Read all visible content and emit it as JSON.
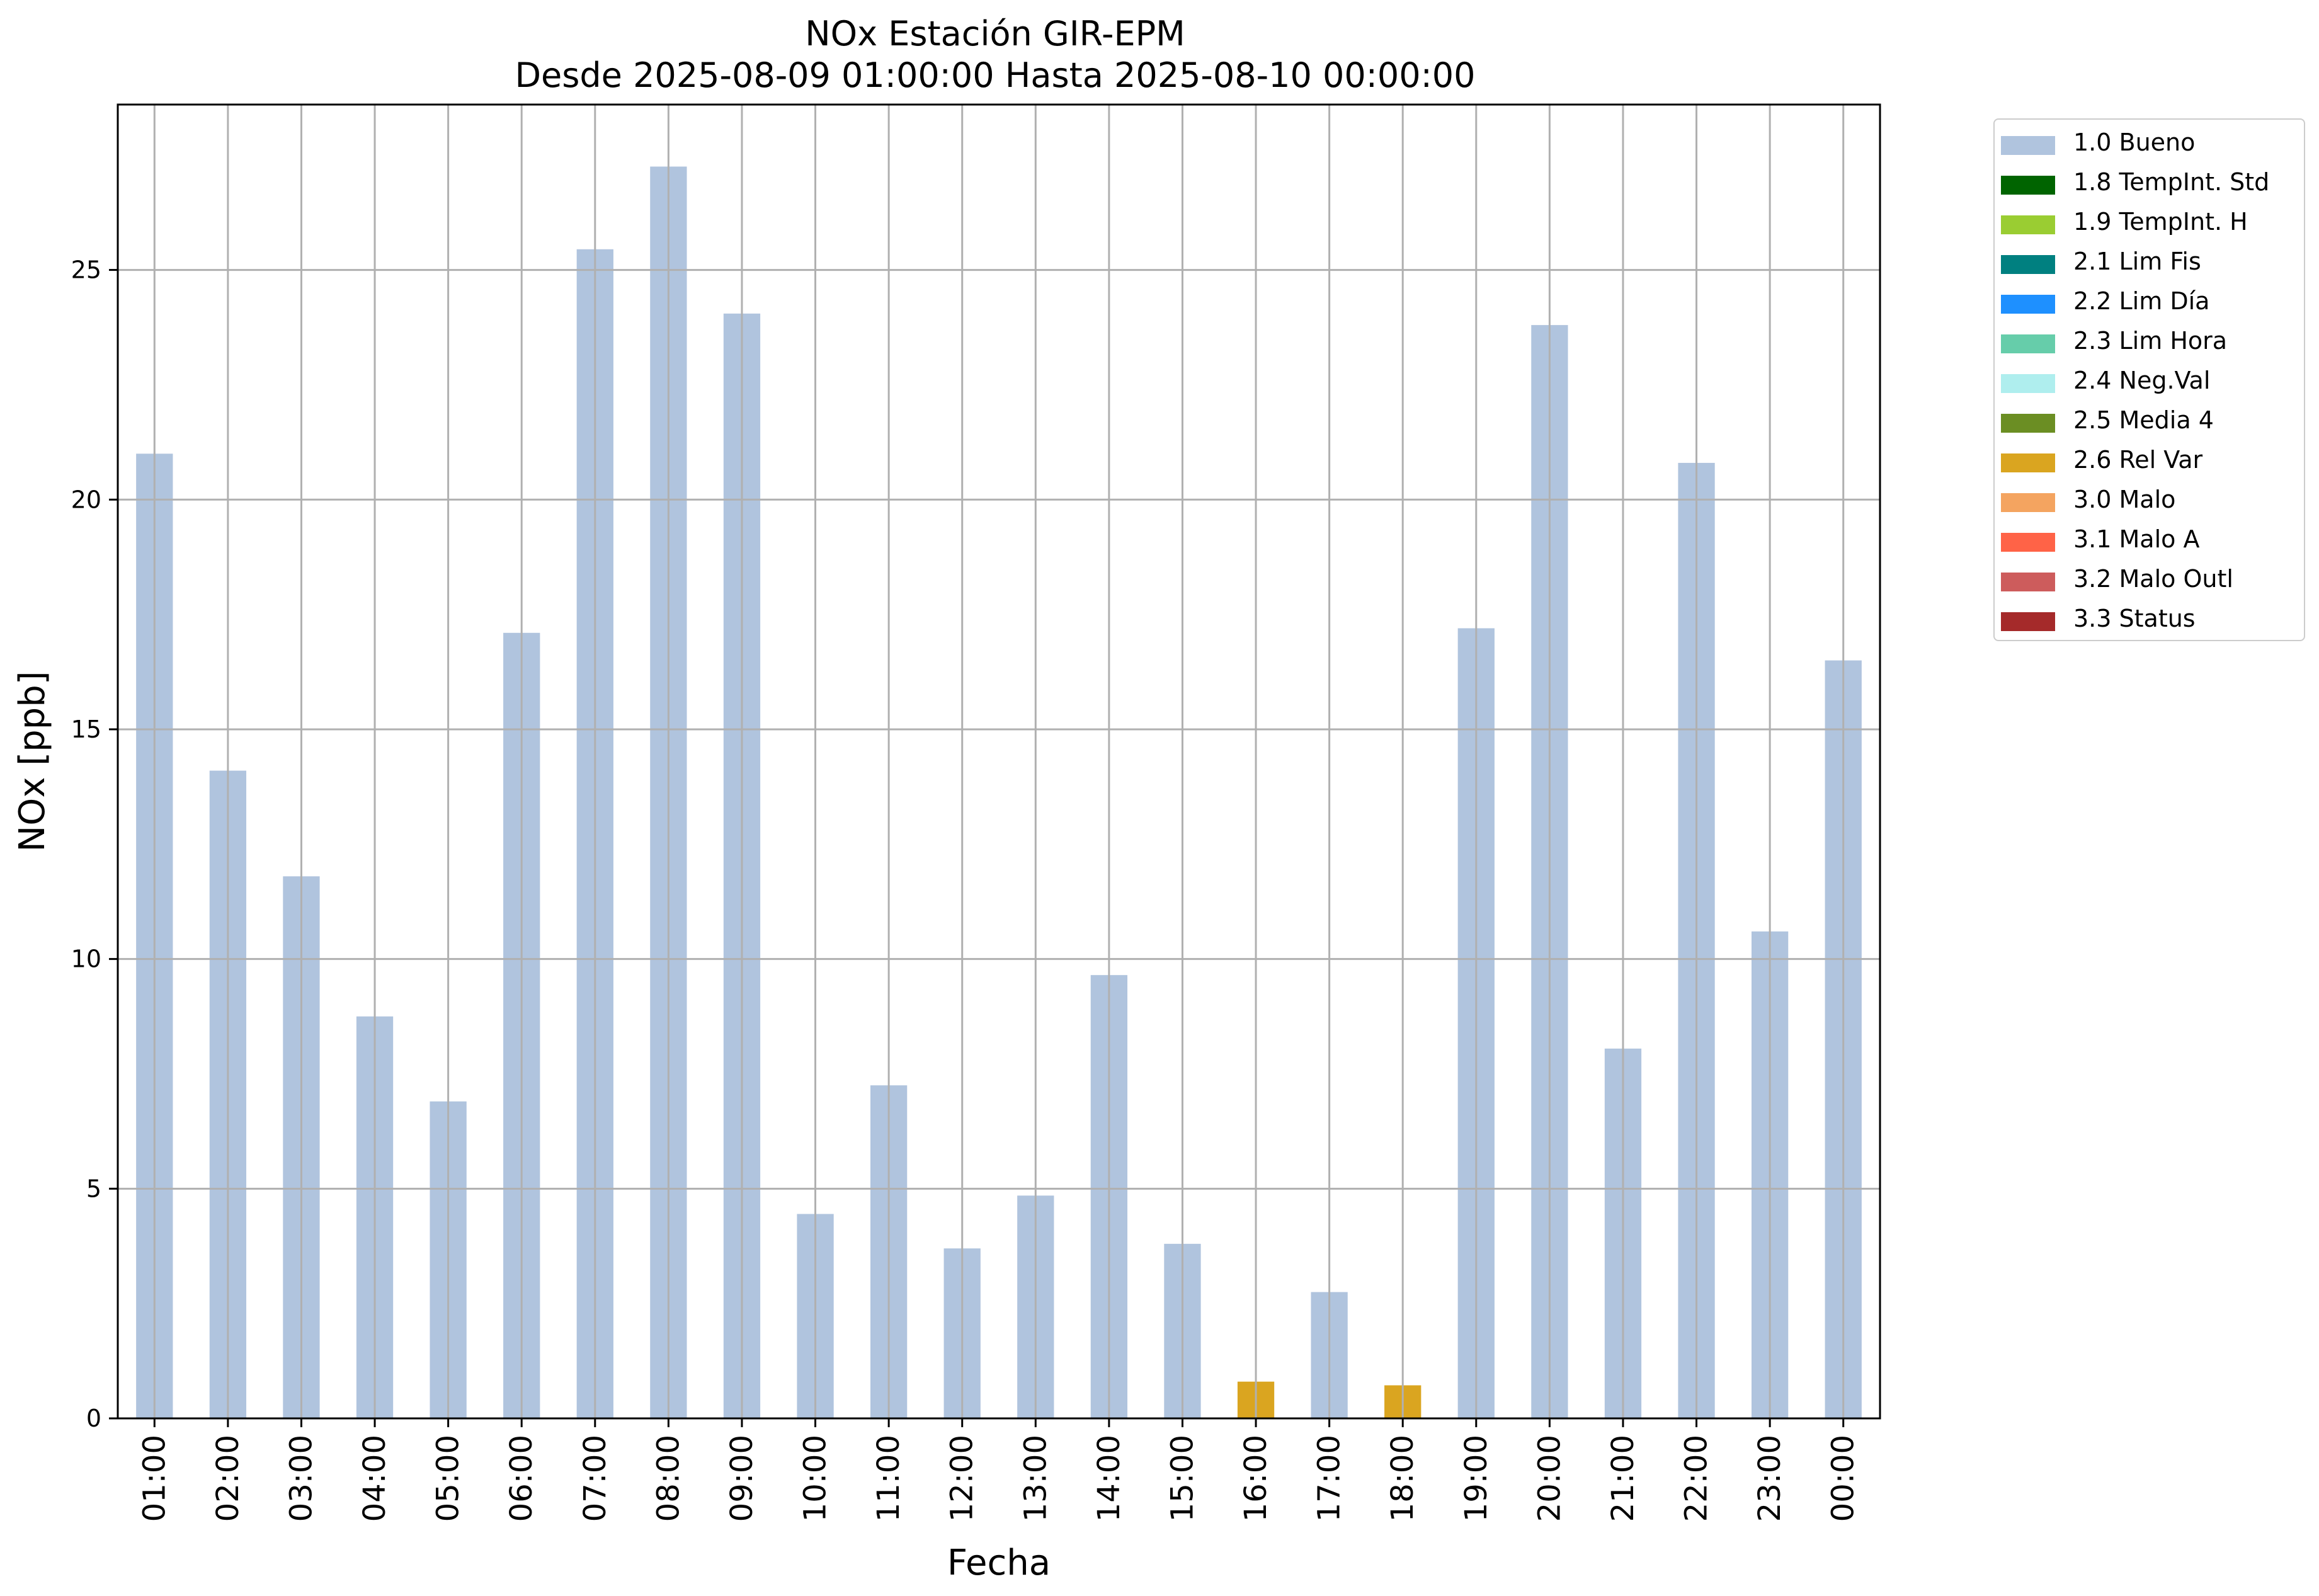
{
  "chart_data": {
    "type": "bar",
    "title": "NOx Estación GIR-EPM",
    "subtitle": "Desde 2025-08-09 01:00:00 Hasta 2025-08-10 00:00:00",
    "xlabel": "Fecha",
    "ylabel": "NOx [ppb]",
    "ylim": [
      0,
      28.6
    ],
    "yticks": [
      0,
      5,
      10,
      15,
      20,
      25
    ],
    "grid": true,
    "legend_position": "outside-right",
    "categories": [
      "01:00",
      "02:00",
      "03:00",
      "04:00",
      "05:00",
      "06:00",
      "07:00",
      "08:00",
      "09:00",
      "10:00",
      "11:00",
      "12:00",
      "13:00",
      "14:00",
      "15:00",
      "16:00",
      "17:00",
      "18:00",
      "19:00",
      "20:00",
      "21:00",
      "22:00",
      "23:00",
      "00:00"
    ],
    "values": [
      21.0,
      14.1,
      11.8,
      8.75,
      6.9,
      17.1,
      25.45,
      27.25,
      24.05,
      4.45,
      7.25,
      3.7,
      4.85,
      9.65,
      3.8,
      0.8,
      2.75,
      0.72,
      17.2,
      23.8,
      8.05,
      20.8,
      10.6,
      16.5
    ],
    "flags": [
      "1.0 Bueno",
      "1.0 Bueno",
      "1.0 Bueno",
      "1.0 Bueno",
      "1.0 Bueno",
      "1.0 Bueno",
      "1.0 Bueno",
      "1.0 Bueno",
      "1.0 Bueno",
      "1.0 Bueno",
      "1.0 Bueno",
      "1.0 Bueno",
      "1.0 Bueno",
      "1.0 Bueno",
      "1.0 Bueno",
      "2.6 Rel Var",
      "1.0 Bueno",
      "2.6 Rel Var",
      "1.0 Bueno",
      "1.0 Bueno",
      "1.0 Bueno",
      "1.0 Bueno",
      "1.0 Bueno",
      "1.0 Bueno"
    ],
    "legend": [
      {
        "name": "1.0 Bueno",
        "color": "#b0c4de"
      },
      {
        "name": "1.8 TempInt. Std",
        "color": "#006400"
      },
      {
        "name": "1.9 TempInt. H",
        "color": "#9acd32"
      },
      {
        "name": "2.1 Lim Fis",
        "color": "#008080"
      },
      {
        "name": "2.2 Lim Día",
        "color": "#1e90ff"
      },
      {
        "name": "2.3 Lim Hora",
        "color": "#66cdaa"
      },
      {
        "name": "2.4 Neg.Val",
        "color": "#afeeee"
      },
      {
        "name": "2.5 Media 4",
        "color": "#6b8e23"
      },
      {
        "name": "2.6 Rel Var",
        "color": "#daa520"
      },
      {
        "name": "3.0 Malo",
        "color": "#f4a460"
      },
      {
        "name": "3.1 Malo A",
        "color": "#ff6347"
      },
      {
        "name": "3.2 Malo Outl",
        "color": "#cd5c5c"
      },
      {
        "name": "3.3 Status",
        "color": "#a52a2a"
      }
    ]
  }
}
